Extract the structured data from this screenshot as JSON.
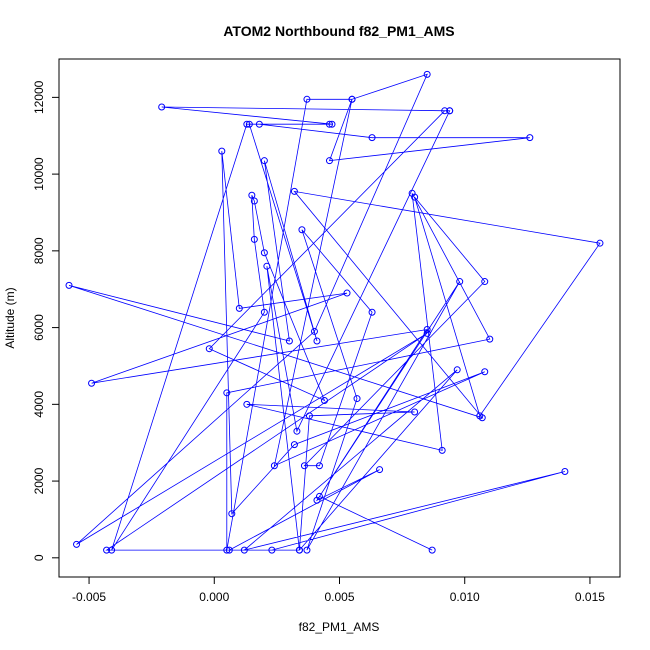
{
  "chart_data": {
    "type": "line",
    "title": "ATOM2 Northbound f82_PM1_AMS",
    "xlabel": "f82_PM1_AMS",
    "ylabel": "Altitude (m)",
    "xlim": [
      -0.0062,
      0.0162
    ],
    "ylim": [
      -500,
      13000
    ],
    "xticks": [
      -0.005,
      0.0,
      0.005,
      0.01,
      0.015
    ],
    "xtick_labels": [
      "-0.005",
      "0.000",
      "0.005",
      "0.010",
      "0.015"
    ],
    "yticks": [
      0,
      2000,
      4000,
      6000,
      8000,
      10000,
      12000
    ],
    "ytick_labels": [
      "0",
      "2000",
      "4000",
      "6000",
      "8000",
      "10000",
      "12000"
    ],
    "grid": false,
    "legend": "none",
    "series_color": "#0000ff",
    "markers": "open-circle",
    "points": [
      [
        0.0087,
        200
      ],
      [
        0.0042,
        1600
      ],
      [
        0.0085,
        5950
      ],
      [
        -0.0049,
        4550
      ],
      [
        0.0053,
        6900
      ],
      [
        0.001,
        6500
      ],
      [
        0.0003,
        10600
      ],
      [
        0.0007,
        1150
      ],
      [
        0.0032,
        2950
      ],
      [
        0.0108,
        4850
      ],
      [
        0.0024,
        2400
      ],
      [
        0.0055,
        11950
      ],
      [
        0.0037,
        11950
      ],
      [
        0.0005,
        200
      ],
      [
        0.0005,
        4300
      ],
      [
        0.011,
        5700
      ],
      [
        0.0079,
        9500
      ],
      [
        0.0091,
        2800
      ],
      [
        0.0013,
        4000
      ],
      [
        0.008,
        3800
      ],
      [
        0.0038,
        3700
      ],
      [
        0.0034,
        200
      ],
      [
        0.0021,
        7600
      ],
      [
        0.0033,
        3300
      ],
      [
        0.0094,
        11650
      ],
      [
        -0.0021,
        11750
      ],
      [
        0.0047,
        11300
      ],
      [
        0.0014,
        11300
      ],
      [
        0.0041,
        5650
      ],
      [
        0.002,
        10350
      ],
      [
        0.003,
        5650
      ],
      [
        -0.0058,
        7100
      ],
      [
        0.0107,
        3650
      ],
      [
        0.0032,
        9550
      ],
      [
        0.0154,
        8200
      ],
      [
        0.0106,
        3700
      ],
      [
        0.008,
        9400
      ],
      [
        0.0108,
        7200
      ],
      [
        0.0036,
        2400
      ],
      [
        0.0042,
        2400
      ],
      [
        0.0063,
        6400
      ],
      [
        0.0035,
        8550
      ],
      [
        0.0057,
        4150
      ],
      [
        0.0037,
        200
      ],
      [
        0.0098,
        7200
      ],
      [
        0.0041,
        1500
      ],
      [
        0.0066,
        2300
      ],
      [
        0.0006,
        200
      ],
      [
        0.0034,
        200
      ],
      [
        0.0097,
        4900
      ],
      [
        0.0012,
        200
      ],
      [
        0.014,
        2250
      ],
      [
        0.0023,
        200
      ],
      [
        -0.0043,
        200
      ],
      [
        0.0085,
        5850
      ],
      [
        -0.0055,
        350
      ],
      [
        0.004,
        5900
      ],
      [
        0.0085,
        12600
      ],
      [
        0.0055,
        11950
      ],
      [
        0.0046,
        10350
      ],
      [
        0.0126,
        10950
      ],
      [
        0.0063,
        10950
      ],
      [
        0.0018,
        11300
      ],
      [
        0.0046,
        11300
      ],
      [
        0.0013,
        11300
      ],
      [
        -0.0041,
        200
      ],
      [
        0.002,
        6400
      ],
      [
        0.0016,
        8300
      ],
      [
        0.0015,
        9450
      ],
      [
        0.0016,
        9300
      ],
      [
        0.002,
        7950
      ],
      [
        0.0044,
        4100
      ],
      [
        -0.0002,
        5450
      ],
      [
        0.0092,
        11650
      ],
      [
        0.0094,
        11650
      ]
    ]
  }
}
